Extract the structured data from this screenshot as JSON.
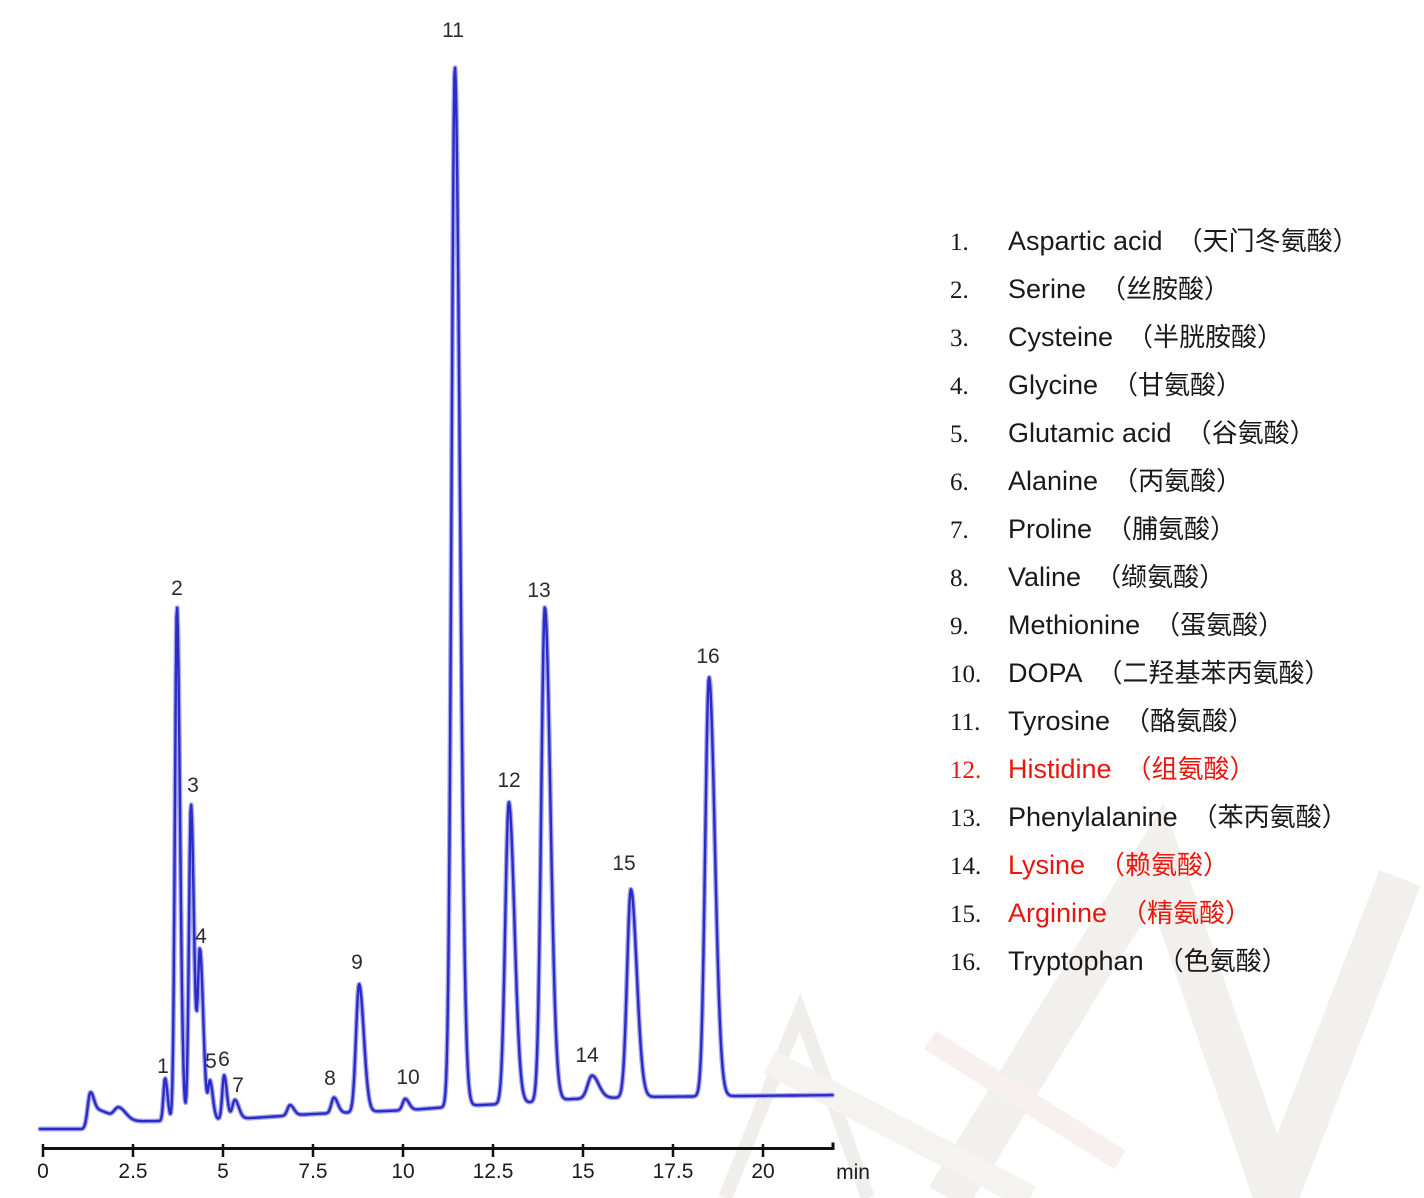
{
  "watermark": {
    "colors": [
      "#f0eeea",
      "#f2f0ec",
      "#f5f3ef",
      "#f7f0ee"
    ]
  },
  "chart_data": {
    "type": "line",
    "title": "",
    "xlabel": "min",
    "ylabel": "",
    "x_ticks": [
      "0",
      "2.5",
      "5",
      "7.5",
      "10",
      "12.5",
      "15",
      "17.5",
      "20"
    ],
    "x_range": [
      0,
      22
    ],
    "grid": false,
    "curve_color": "#2b2bc8",
    "curve_halo_color": "#a9a9ec",
    "axis_color": "#111111",
    "peaks": [
      {
        "n": "1",
        "t_min": 3.39,
        "height_pct": 4.1,
        "sigma_min": 0.045
      },
      {
        "n": "2",
        "t_min": 3.72,
        "height_pct": 49.5,
        "sigma_min": 0.055
      },
      {
        "n": "3",
        "t_min": 4.11,
        "height_pct": 30.4,
        "sigma_min": 0.055
      },
      {
        "n": "4",
        "t_min": 4.36,
        "height_pct": 16.1,
        "sigma_min": 0.06
      },
      {
        "n": "5",
        "t_min": 4.64,
        "height_pct": 3.6,
        "sigma_min": 0.05
      },
      {
        "n": "6",
        "t_min": 5.03,
        "height_pct": 4.2,
        "sigma_min": 0.05
      },
      {
        "n": "7",
        "t_min": 5.33,
        "height_pct": 1.8,
        "sigma_min": 0.07
      },
      {
        "n": "8",
        "t_min": 8.08,
        "height_pct": 1.5,
        "sigma_min": 0.07
      },
      {
        "n": "9",
        "t_min": 8.78,
        "height_pct": 12.3,
        "sigma_min": 0.085
      },
      {
        "n": "10",
        "t_min": 10.06,
        "height_pct": 1.1,
        "sigma_min": 0.07
      },
      {
        "n": "11",
        "t_min": 11.44,
        "height_pct": 100,
        "sigma_min": 0.09
      },
      {
        "n": "12",
        "t_min": 12.94,
        "height_pct": 29.0,
        "sigma_min": 0.1
      },
      {
        "n": "13",
        "t_min": 13.94,
        "height_pct": 47.5,
        "sigma_min": 0.1
      },
      {
        "n": "14",
        "t_min": 15.25,
        "height_pct": 2.2,
        "sigma_min": 0.12
      },
      {
        "n": "15",
        "t_min": 16.33,
        "height_pct": 20.0,
        "sigma_min": 0.105
      },
      {
        "n": "16",
        "t_min": 18.5,
        "height_pct": 40.3,
        "sigma_min": 0.105
      }
    ],
    "unlabeled_features": [
      {
        "t_min": 1.31,
        "height_pct": 3.1,
        "sigma_min": 0.07
      },
      {
        "t_min": 1.58,
        "height_pct": 1.2,
        "sigma_min": 0.14
      },
      {
        "t_min": 2.1,
        "height_pct": 1.3,
        "sigma_min": 0.13
      },
      {
        "t_min": 6.86,
        "height_pct": 1.0,
        "sigma_min": 0.07
      }
    ]
  },
  "legend": {
    "items": [
      {
        "num": "1.",
        "name": "Aspartic acid",
        "cn": "（天门冬氨酸）",
        "red_num": false,
        "red_text": false
      },
      {
        "num": "2.",
        "name": "Serine",
        "cn": "（丝胺酸）",
        "red_num": false,
        "red_text": false
      },
      {
        "num": "3.",
        "name": "Cysteine",
        "cn": "（半胱胺酸）",
        "red_num": false,
        "red_text": false
      },
      {
        "num": "4.",
        "name": "Glycine",
        "cn": "（甘氨酸）",
        "red_num": false,
        "red_text": false
      },
      {
        "num": "5.",
        "name": "Glutamic acid",
        "cn": "（谷氨酸）",
        "red_num": false,
        "red_text": false
      },
      {
        "num": "6.",
        "name": "Alanine",
        "cn": "（丙氨酸）",
        "red_num": false,
        "red_text": false
      },
      {
        "num": "7.",
        "name": "Proline",
        "cn": "（脯氨酸）",
        "red_num": false,
        "red_text": false
      },
      {
        "num": "8.",
        "name": "Valine",
        "cn": "（缬氨酸）",
        "red_num": false,
        "red_text": false
      },
      {
        "num": "9.",
        "name": "Methionine",
        "cn": "（蛋氨酸）",
        "red_num": false,
        "red_text": false
      },
      {
        "num": "10.",
        "name": "DOPA",
        "cn": "（二羟基苯丙氨酸）",
        "red_num": false,
        "red_text": false
      },
      {
        "num": "11.",
        "name": "Tyrosine",
        "cn": "（酪氨酸）",
        "red_num": false,
        "red_text": false
      },
      {
        "num": "12.",
        "name": "Histidine",
        "cn": "（组氨酸）",
        "red_num": true,
        "red_text": true
      },
      {
        "num": "13.",
        "name": "Phenylalanine",
        "cn": "（苯丙氨酸）",
        "red_num": false,
        "red_text": false
      },
      {
        "num": "14.",
        "name": "Lysine",
        "cn": "（赖氨酸）",
        "red_num": false,
        "red_text": true
      },
      {
        "num": "15.",
        "name": "Arginine",
        "cn": "（精氨酸）",
        "red_num": false,
        "red_text": true
      },
      {
        "num": "16.",
        "name": "Tryptophan",
        "cn": "（色氨酸）",
        "red_num": false,
        "red_text": false
      }
    ]
  }
}
